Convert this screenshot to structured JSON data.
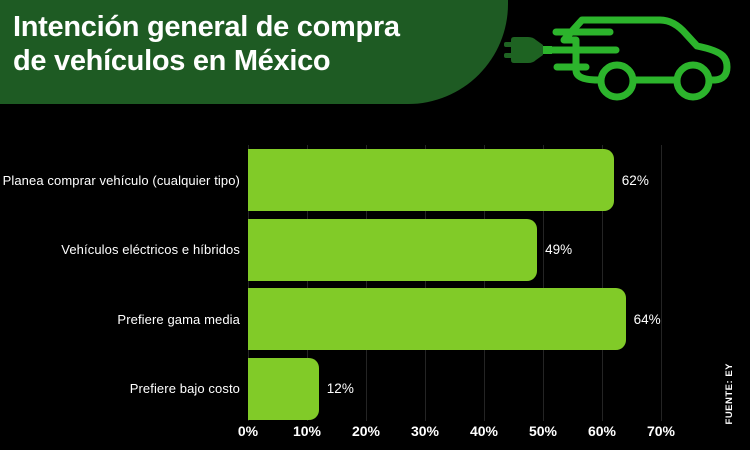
{
  "header": {
    "title_line1": "Intención general de compra",
    "title_line2": "de vehículos en México"
  },
  "icon": {
    "name": "electric-car-icon"
  },
  "chart_data": {
    "type": "bar",
    "orientation": "horizontal",
    "title": "Intención general de compra de vehículos en México",
    "categories": [
      "Planea comprar vehículo (cualquier tipo)",
      "Vehículos eléctricos e híbridos",
      "Prefiere gama media",
      "Prefiere bajo costo"
    ],
    "values": [
      62,
      49,
      64,
      12
    ],
    "value_labels": [
      "62%",
      "49%",
      "64%",
      "12%"
    ],
    "x_ticks": [
      "0%",
      "10%",
      "20%",
      "30%",
      "40%",
      "50%",
      "60%",
      "70%"
    ],
    "xlim": [
      0,
      70
    ],
    "grid": "vertical",
    "legend": "none",
    "source": "FUENTE: EY"
  },
  "colors": {
    "background": "#000000",
    "header_green": "#1e5b23",
    "bar_green": "#81cb28",
    "icon_green": "#2cb42c",
    "plug_green": "#1e6322",
    "grid_line": "#242424",
    "text": "#ffffff"
  },
  "source_label": "FUENTE: EY"
}
